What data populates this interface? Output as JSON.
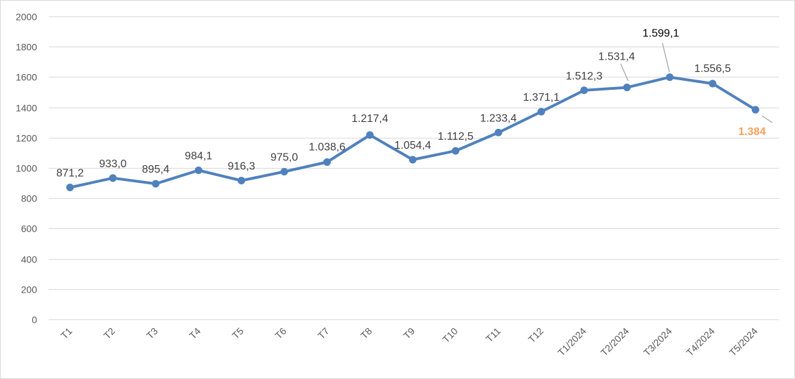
{
  "chart_data": {
    "type": "line",
    "categories": [
      "T1",
      "T2",
      "T3",
      "T4",
      "T5",
      "T6",
      "T7",
      "T8",
      "T9",
      "T10",
      "T11",
      "T12",
      "T1/2024",
      "T2/2024",
      "T3/2024",
      "T4/2024",
      "T5/2024"
    ],
    "series": [
      {
        "values": [
          871.2,
          933.0,
          895.4,
          984.1,
          916.3,
          975.0,
          1038.6,
          1217.4,
          1054.4,
          1112.5,
          1233.4,
          1371.1,
          1512.3,
          1531.4,
          1599.1,
          1556.5,
          1384
        ],
        "data_labels": [
          "871,2",
          "933,0",
          "895,4",
          "984,1",
          "916,3",
          "975,0",
          "1.038,6",
          "1.217,4",
          "1.054,4",
          "1.112,5",
          "1.233,4",
          "1.371,1",
          "1.512,3",
          "1.531,4",
          "1.599,1",
          "1.556,5",
          "1.384"
        ],
        "color": "#4f81bd"
      }
    ],
    "y_ticks": [
      "0",
      "200",
      "400",
      "600",
      "800",
      "1000",
      "1200",
      "1400",
      "1600",
      "1800",
      "2000"
    ],
    "ylim": [
      0,
      2000
    ],
    "grid": true,
    "legend": "none",
    "highlight_color": "#f4a15d",
    "title": "",
    "xlabel": "",
    "ylabel": ""
  }
}
